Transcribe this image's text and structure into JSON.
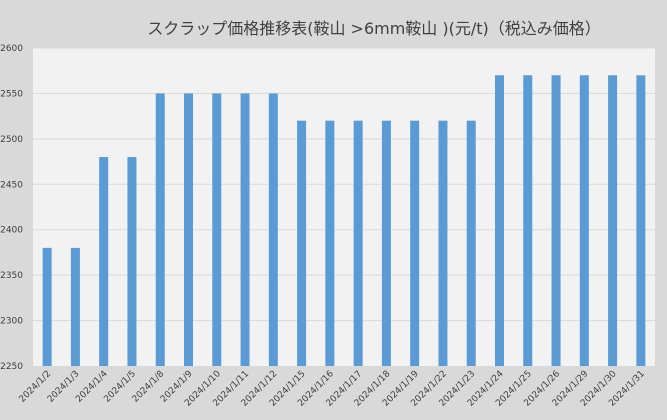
{
  "chart_data": {
    "type": "bar",
    "title": "スクラップ価格推移表(鞍山 >6mm鞍山 )(元/t)（税込み価格）",
    "xlabel": "",
    "ylabel": "",
    "ylim": [
      2250,
      2600
    ],
    "yticks": [
      2250,
      2300,
      2350,
      2400,
      2450,
      2500,
      2550,
      2600
    ],
    "grid": true,
    "legend": "none",
    "bar_color": "#5b9bd5",
    "categories": [
      "2024/1/2",
      "2024/1/3",
      "2024/1/4",
      "2024/1/5",
      "2024/1/8",
      "2024/1/9",
      "2024/1/10",
      "2024/1/11",
      "2024/1/12",
      "2024/1/15",
      "2024/1/16",
      "2024/1/17",
      "2024/1/18",
      "2024/1/19",
      "2024/1/22",
      "2024/1/23",
      "2024/1/24",
      "2024/1/25",
      "2024/1/26",
      "2024/1/29",
      "2024/1/30",
      "2024/1/31"
    ],
    "values": [
      2380,
      2380,
      2480,
      2480,
      2550,
      2550,
      2550,
      2550,
      2550,
      2520,
      2520,
      2520,
      2520,
      2520,
      2520,
      2520,
      2570,
      2570,
      2570,
      2570,
      2570,
      2570
    ]
  }
}
